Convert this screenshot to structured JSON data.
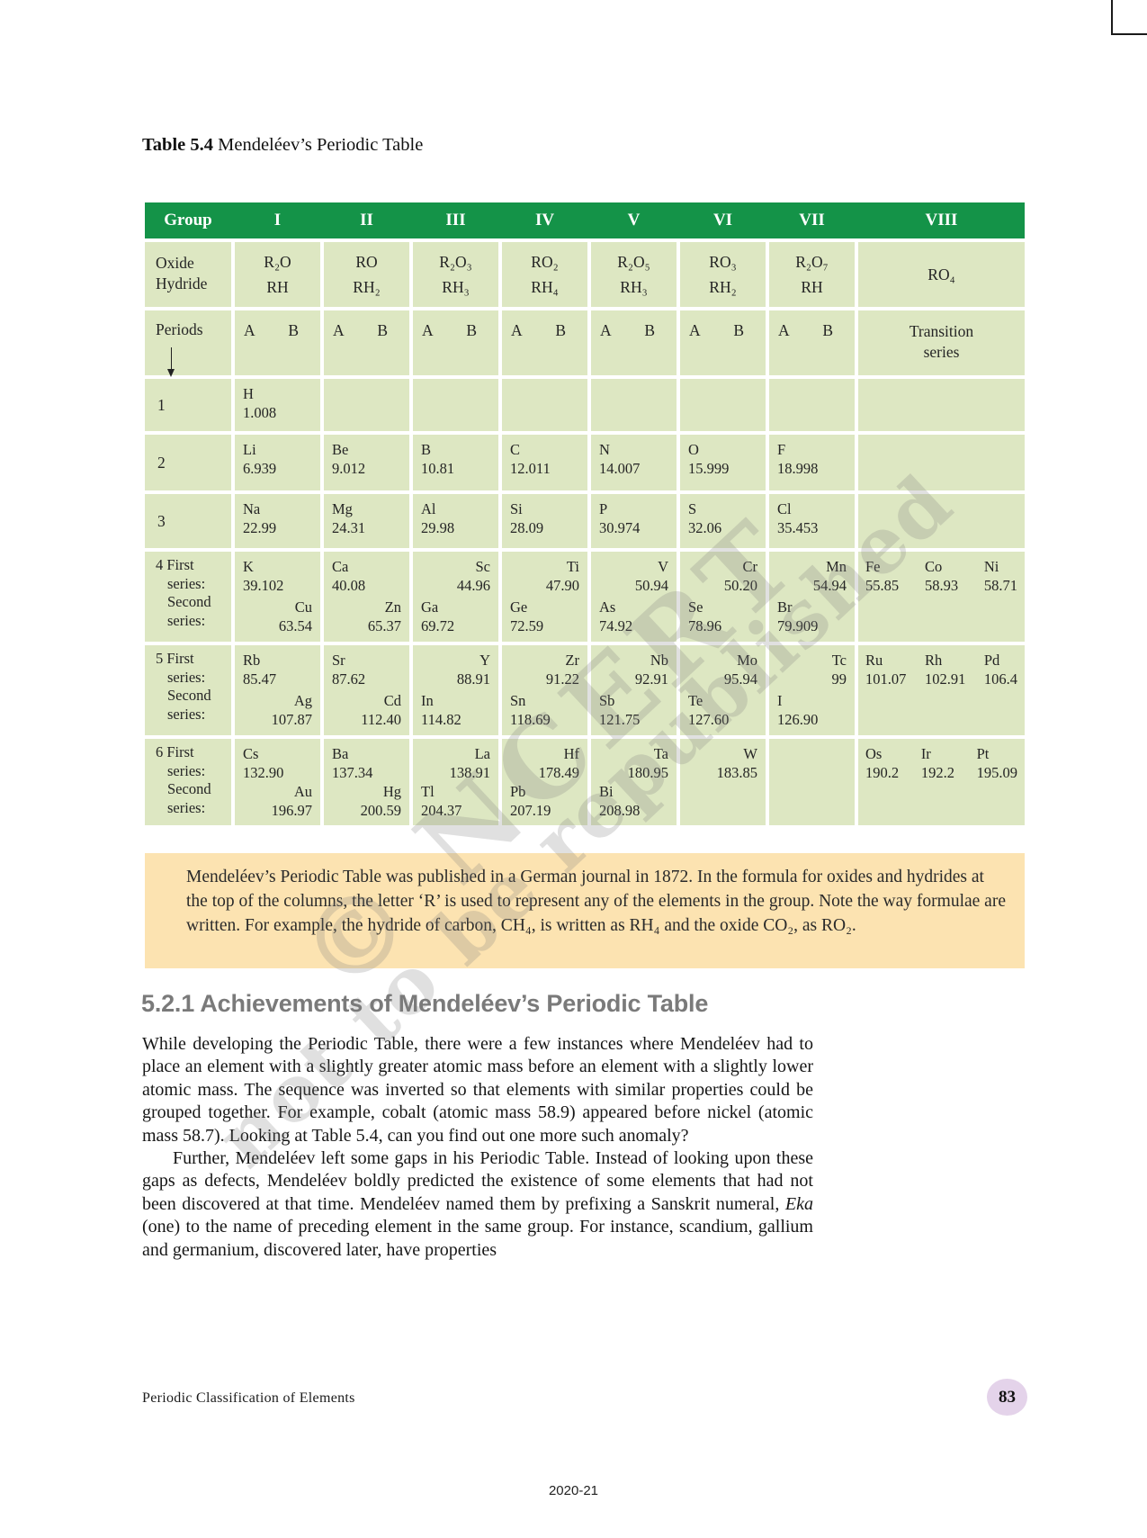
{
  "colors": {
    "header_green": "#149348",
    "cell_green": "#dde7c2",
    "note_orange": "#fce3b1",
    "badge_lavender": "#e4d3ea",
    "heading_gray": "#7a7a7a"
  },
  "caption": {
    "label": "Table 5.4",
    "title": "Mendeléev’s Periodic Table"
  },
  "watermark": {
    "line1": "© NCERT",
    "line2": "not to be republished"
  },
  "periodic_table": {
    "header": {
      "group_label": "Group",
      "groups": [
        "I",
        "II",
        "III",
        "IV",
        "V",
        "VI",
        "VII",
        "VIII"
      ]
    },
    "oxide_row": {
      "label_lines": [
        "Oxide",
        "Hydride"
      ],
      "formulas": [
        {
          "oxide": "R₂O",
          "hydride": "RH"
        },
        {
          "oxide": "RO",
          "hydride": "RH₂"
        },
        {
          "oxide": "R₂O₃",
          "hydride": "RH₃"
        },
        {
          "oxide": "RO₂",
          "hydride": "RH₄"
        },
        {
          "oxide": "R₂O₅",
          "hydride": "RH₃"
        },
        {
          "oxide": "RO₃",
          "hydride": "RH₂"
        },
        {
          "oxide": "R₂O₇",
          "hydride": "RH"
        }
      ],
      "group8_formula": "RO₄"
    },
    "periods_header": {
      "label": "Periods",
      "sub_a": "A",
      "sub_b": "B",
      "group8_lines": [
        "Transition",
        "series"
      ]
    },
    "periods": [
      {
        "label_lines": [
          "1"
        ],
        "cells": [
          {
            "first": {
              "symbol": "H",
              "mass": "1.008",
              "align": "left"
            },
            "second": null
          },
          null,
          null,
          null,
          null,
          null,
          null
        ],
        "group8": []
      },
      {
        "label_lines": [
          "2"
        ],
        "cells": [
          {
            "first": {
              "symbol": "Li",
              "mass": "6.939",
              "align": "left"
            },
            "second": null
          },
          {
            "first": {
              "symbol": "Be",
              "mass": "9.012",
              "align": "left"
            },
            "second": null
          },
          {
            "first": {
              "symbol": "B",
              "mass": "10.81",
              "align": "left"
            },
            "second": null
          },
          {
            "first": {
              "symbol": "C",
              "mass": "12.011",
              "align": "left"
            },
            "second": null
          },
          {
            "first": {
              "symbol": "N",
              "mass": "14.007",
              "align": "left"
            },
            "second": null
          },
          {
            "first": {
              "symbol": "O",
              "mass": "15.999",
              "align": "left"
            },
            "second": null
          },
          {
            "first": {
              "symbol": "F",
              "mass": "18.998",
              "align": "left"
            },
            "second": null
          }
        ],
        "group8": []
      },
      {
        "label_lines": [
          "3"
        ],
        "cells": [
          {
            "first": {
              "symbol": "Na",
              "mass": "22.99",
              "align": "left"
            },
            "second": null
          },
          {
            "first": {
              "symbol": "Mg",
              "mass": "24.31",
              "align": "left"
            },
            "second": null
          },
          {
            "first": {
              "symbol": "Al",
              "mass": "29.98",
              "align": "left"
            },
            "second": null
          },
          {
            "first": {
              "symbol": "Si",
              "mass": "28.09",
              "align": "left"
            },
            "second": null
          },
          {
            "first": {
              "symbol": "P",
              "mass": "30.974",
              "align": "left"
            },
            "second": null
          },
          {
            "first": {
              "symbol": "S",
              "mass": "32.06",
              "align": "left"
            },
            "second": null
          },
          {
            "first": {
              "symbol": "Cl",
              "mass": "35.453",
              "align": "left"
            },
            "second": null
          }
        ],
        "group8": []
      },
      {
        "label_lines": [
          "4 First",
          "series:",
          "Second",
          "series:"
        ],
        "cells": [
          {
            "first": {
              "symbol": "K",
              "mass": "39.102",
              "align": "left"
            },
            "second": {
              "symbol": "Cu",
              "mass": "63.54",
              "align": "right"
            }
          },
          {
            "first": {
              "symbol": "Ca",
              "mass": "40.08",
              "align": "left"
            },
            "second": {
              "symbol": "Zn",
              "mass": "65.37",
              "align": "right"
            }
          },
          {
            "first": {
              "symbol": "Sc",
              "mass": "44.96",
              "align": "right"
            },
            "second": {
              "symbol": "Ga",
              "mass": "69.72",
              "align": "left"
            }
          },
          {
            "first": {
              "symbol": "Ti",
              "mass": "47.90",
              "align": "right"
            },
            "second": {
              "symbol": "Ge",
              "mass": "72.59",
              "align": "left"
            }
          },
          {
            "first": {
              "symbol": "V",
              "mass": "50.94",
              "align": "right"
            },
            "second": {
              "symbol": "As",
              "mass": "74.92",
              "align": "left"
            }
          },
          {
            "first": {
              "symbol": "Cr",
              "mass": "50.20",
              "align": "right"
            },
            "second": {
              "symbol": "Se",
              "mass": "78.96",
              "align": "left"
            }
          },
          {
            "first": {
              "symbol": "Mn",
              "mass": "54.94",
              "align": "right"
            },
            "second": {
              "symbol": "Br",
              "mass": "79.909",
              "align": "left"
            }
          }
        ],
        "group8": [
          {
            "symbol": "Fe",
            "mass": "55.85"
          },
          {
            "symbol": "Co",
            "mass": "58.93"
          },
          {
            "symbol": "Ni",
            "mass": "58.71"
          }
        ]
      },
      {
        "label_lines": [
          "5 First",
          "series:",
          "Second",
          "series:"
        ],
        "cells": [
          {
            "first": {
              "symbol": "Rb",
              "mass": "85.47",
              "align": "left"
            },
            "second": {
              "symbol": "Ag",
              "mass": "107.87",
              "align": "right"
            }
          },
          {
            "first": {
              "symbol": "Sr",
              "mass": "87.62",
              "align": "left"
            },
            "second": {
              "symbol": "Cd",
              "mass": "112.40",
              "align": "right"
            }
          },
          {
            "first": {
              "symbol": "Y",
              "mass": "88.91",
              "align": "right"
            },
            "second": {
              "symbol": "In",
              "mass": "114.82",
              "align": "left"
            }
          },
          {
            "first": {
              "symbol": "Zr",
              "mass": "91.22",
              "align": "right"
            },
            "second": {
              "symbol": "Sn",
              "mass": "118.69",
              "align": "left"
            }
          },
          {
            "first": {
              "symbol": "Nb",
              "mass": "92.91",
              "align": "right"
            },
            "second": {
              "symbol": "Sb",
              "mass": "121.75",
              "align": "left"
            }
          },
          {
            "first": {
              "symbol": "Mo",
              "mass": "95.94",
              "align": "right"
            },
            "second": {
              "symbol": "Te",
              "mass": "127.60",
              "align": "left"
            }
          },
          {
            "first": {
              "symbol": "Tc",
              "mass": "99",
              "align": "right"
            },
            "second": {
              "symbol": "I",
              "mass": "126.90",
              "align": "left"
            }
          }
        ],
        "group8": [
          {
            "symbol": "Ru",
            "mass": "101.07"
          },
          {
            "symbol": "Rh",
            "mass": "102.91"
          },
          {
            "symbol": "Pd",
            "mass": "106.4"
          }
        ]
      },
      {
        "label_lines": [
          "6 First",
          "series:",
          "Second",
          "series:"
        ],
        "cells": [
          {
            "first": {
              "symbol": "Cs",
              "mass": "132.90",
              "align": "left"
            },
            "second": {
              "symbol": "Au",
              "mass": "196.97",
              "align": "right"
            }
          },
          {
            "first": {
              "symbol": "Ba",
              "mass": "137.34",
              "align": "left"
            },
            "second": {
              "symbol": "Hg",
              "mass": "200.59",
              "align": "right"
            }
          },
          {
            "first": {
              "symbol": "La",
              "mass": "138.91",
              "align": "right"
            },
            "second": {
              "symbol": "Tl",
              "mass": "204.37",
              "align": "left"
            }
          },
          {
            "first": {
              "symbol": "Hf",
              "mass": "178.49",
              "align": "right"
            },
            "second": {
              "symbol": "Pb",
              "mass": "207.19",
              "align": "left"
            }
          },
          {
            "first": {
              "symbol": "Ta",
              "mass": "180.95",
              "align": "right"
            },
            "second": {
              "symbol": "Bi",
              "mass": "208.98",
              "align": "left"
            }
          },
          {
            "first": {
              "symbol": "W",
              "mass": "183.85",
              "align": "right"
            },
            "second": null
          },
          null
        ],
        "group8": [
          {
            "symbol": "Os",
            "mass": "190.2"
          },
          {
            "symbol": "Ir",
            "mass": "192.2"
          },
          {
            "symbol": "Pt",
            "mass": "195.09"
          }
        ]
      }
    ]
  },
  "note_box": {
    "text": "Mendeléev’s Periodic Table was published in a German journal in 1872. In the formula for oxides and hydrides at the top of the columns, the letter ‘R’ is used to represent any of the elements in the group. Note the way formulae are written. For example, the hydride of carbon, CH₄, is written as RH₄ and the oxide CO₂, as RO₂."
  },
  "section": {
    "heading": "5.2.1 Achievements of Mendeléev’s Periodic Table",
    "paragraphs": [
      {
        "indent": false,
        "segments": [
          {
            "text": "While developing the Periodic Table, there were a few instances where Mendeléev had to place an element with a slightly greater atomic mass before an element with a slightly lower atomic mass. The sequence was inverted so that elements with similar properties could be grouped together. For example, cobalt (atomic mass 58.9) appeared before nickel (atomic mass 58.7). Looking at Table 5.4, can you find out one more such anomaly?"
          }
        ]
      },
      {
        "indent": true,
        "segments": [
          {
            "text": "Further, Mendeléev left some gaps in his Periodic Table. Instead of looking upon these gaps as defects, Mendeléev boldly predicted the existence of some elements that had not been discovered at that time. Mendeléev named them by prefixing a Sanskrit numeral, "
          },
          {
            "text": "Eka",
            "italic": true
          },
          {
            "text": " (one) to the name of preceding element in the same group. For instance, scandium, gallium and germanium, discovered later, have properties"
          }
        ]
      }
    ]
  },
  "footer": {
    "left_text": "Periodic Classification of Elements",
    "page_number": "83",
    "year_label": "2020-21"
  }
}
